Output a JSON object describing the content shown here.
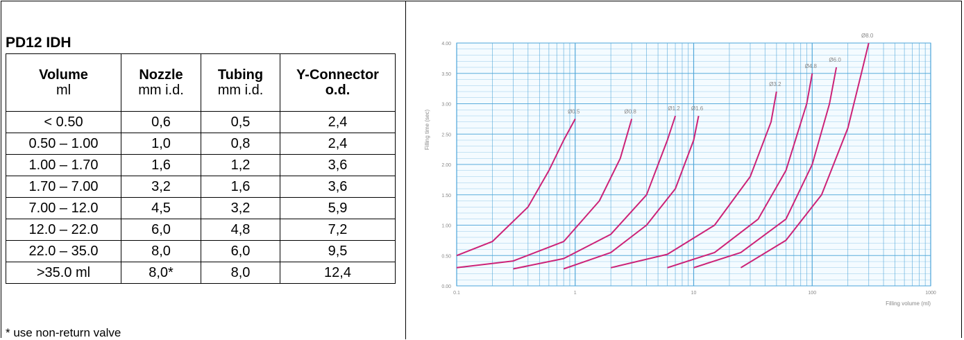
{
  "document": {
    "title": "PD12 IDH",
    "footnote": "* use non-return valve"
  },
  "table": {
    "headers": [
      {
        "main": "Volume",
        "sub": "ml",
        "sub_bold": false
      },
      {
        "main": "Nozzle",
        "sub": "mm i.d.",
        "sub_bold": false
      },
      {
        "main": "Tubing",
        "sub": "mm i.d.",
        "sub_bold": false
      },
      {
        "main": "Y-Connector",
        "sub": "o.d.",
        "sub_bold": true
      }
    ],
    "rows": [
      [
        "< 0.50",
        "0,6",
        "0,5",
        "2,4"
      ],
      [
        "0.50 – 1.00",
        "1,0",
        "0,8",
        "2,4"
      ],
      [
        "1.00 – 1.70",
        "1,6",
        "1,2",
        "3,6"
      ],
      [
        "1.70 – 7.00",
        "3,2",
        "1,6",
        "3,6"
      ],
      [
        "7.00 – 12.0",
        "4,5",
        "3,2",
        "5,9"
      ],
      [
        "12.0 – 22.0",
        "6,0",
        "4,8",
        "7,2"
      ],
      [
        "22.0 – 35.0",
        "8,0",
        "6,0",
        "9,5"
      ],
      [
        ">35.0 ml",
        "8,0*",
        "8,0",
        "12,4"
      ]
    ]
  },
  "chart_data": {
    "type": "line",
    "xlabel": "Filling volume (ml)",
    "ylabel": "Filling time (sec)",
    "x_scale": "log",
    "xlim": [
      0.1,
      1000
    ],
    "ylim": [
      0,
      4
    ],
    "x_ticks": [
      "0.1",
      "1",
      "10",
      "100",
      "1000"
    ],
    "y_ticks": [
      "0.00",
      "0.50",
      "1.00",
      "1.50",
      "2.00",
      "2.50",
      "3.00",
      "3.50",
      "4.00"
    ],
    "grid": true,
    "line_color": "#cc2277",
    "grid_color": "#4aa3d8",
    "series": [
      {
        "name": "Ø0.5",
        "x": [
          0.1,
          0.2,
          0.4,
          0.6,
          0.8,
          1.0
        ],
        "y": [
          0.5,
          0.73,
          1.3,
          1.9,
          2.4,
          2.75
        ]
      },
      {
        "name": "Ø0.8",
        "x": [
          0.1,
          0.3,
          0.8,
          1.6,
          2.4,
          3.0
        ],
        "y": [
          0.3,
          0.41,
          0.73,
          1.4,
          2.1,
          2.75
        ]
      },
      {
        "name": "Ø1.2",
        "x": [
          0.3,
          0.8,
          2.0,
          4.0,
          6.0,
          7.0
        ],
        "y": [
          0.28,
          0.45,
          0.85,
          1.5,
          2.4,
          2.8
        ]
      },
      {
        "name": "Ø1.6",
        "x": [
          0.8,
          2.0,
          4.0,
          7.0,
          10.0,
          11.0
        ],
        "y": [
          0.28,
          0.55,
          1.0,
          1.6,
          2.4,
          2.8
        ]
      },
      {
        "name": "Ø3.2",
        "x": [
          2.0,
          6.0,
          15.0,
          30.0,
          45.0,
          50.0
        ],
        "y": [
          0.3,
          0.52,
          1.0,
          1.8,
          2.7,
          3.2
        ]
      },
      {
        "name": "Ø4.8",
        "x": [
          6.0,
          15.0,
          35.0,
          60.0,
          90.0,
          100.0
        ],
        "y": [
          0.3,
          0.55,
          1.1,
          1.9,
          3.0,
          3.5
        ]
      },
      {
        "name": "Ø6.0",
        "x": [
          10.0,
          25.0,
          60.0,
          100.0,
          140.0,
          160.0
        ],
        "y": [
          0.3,
          0.55,
          1.1,
          2.0,
          3.0,
          3.6
        ]
      },
      {
        "name": "Ø8.0",
        "x": [
          25.0,
          60.0,
          120.0,
          200.0,
          260.0,
          300.0
        ],
        "y": [
          0.3,
          0.75,
          1.5,
          2.6,
          3.5,
          4.0
        ]
      }
    ]
  }
}
